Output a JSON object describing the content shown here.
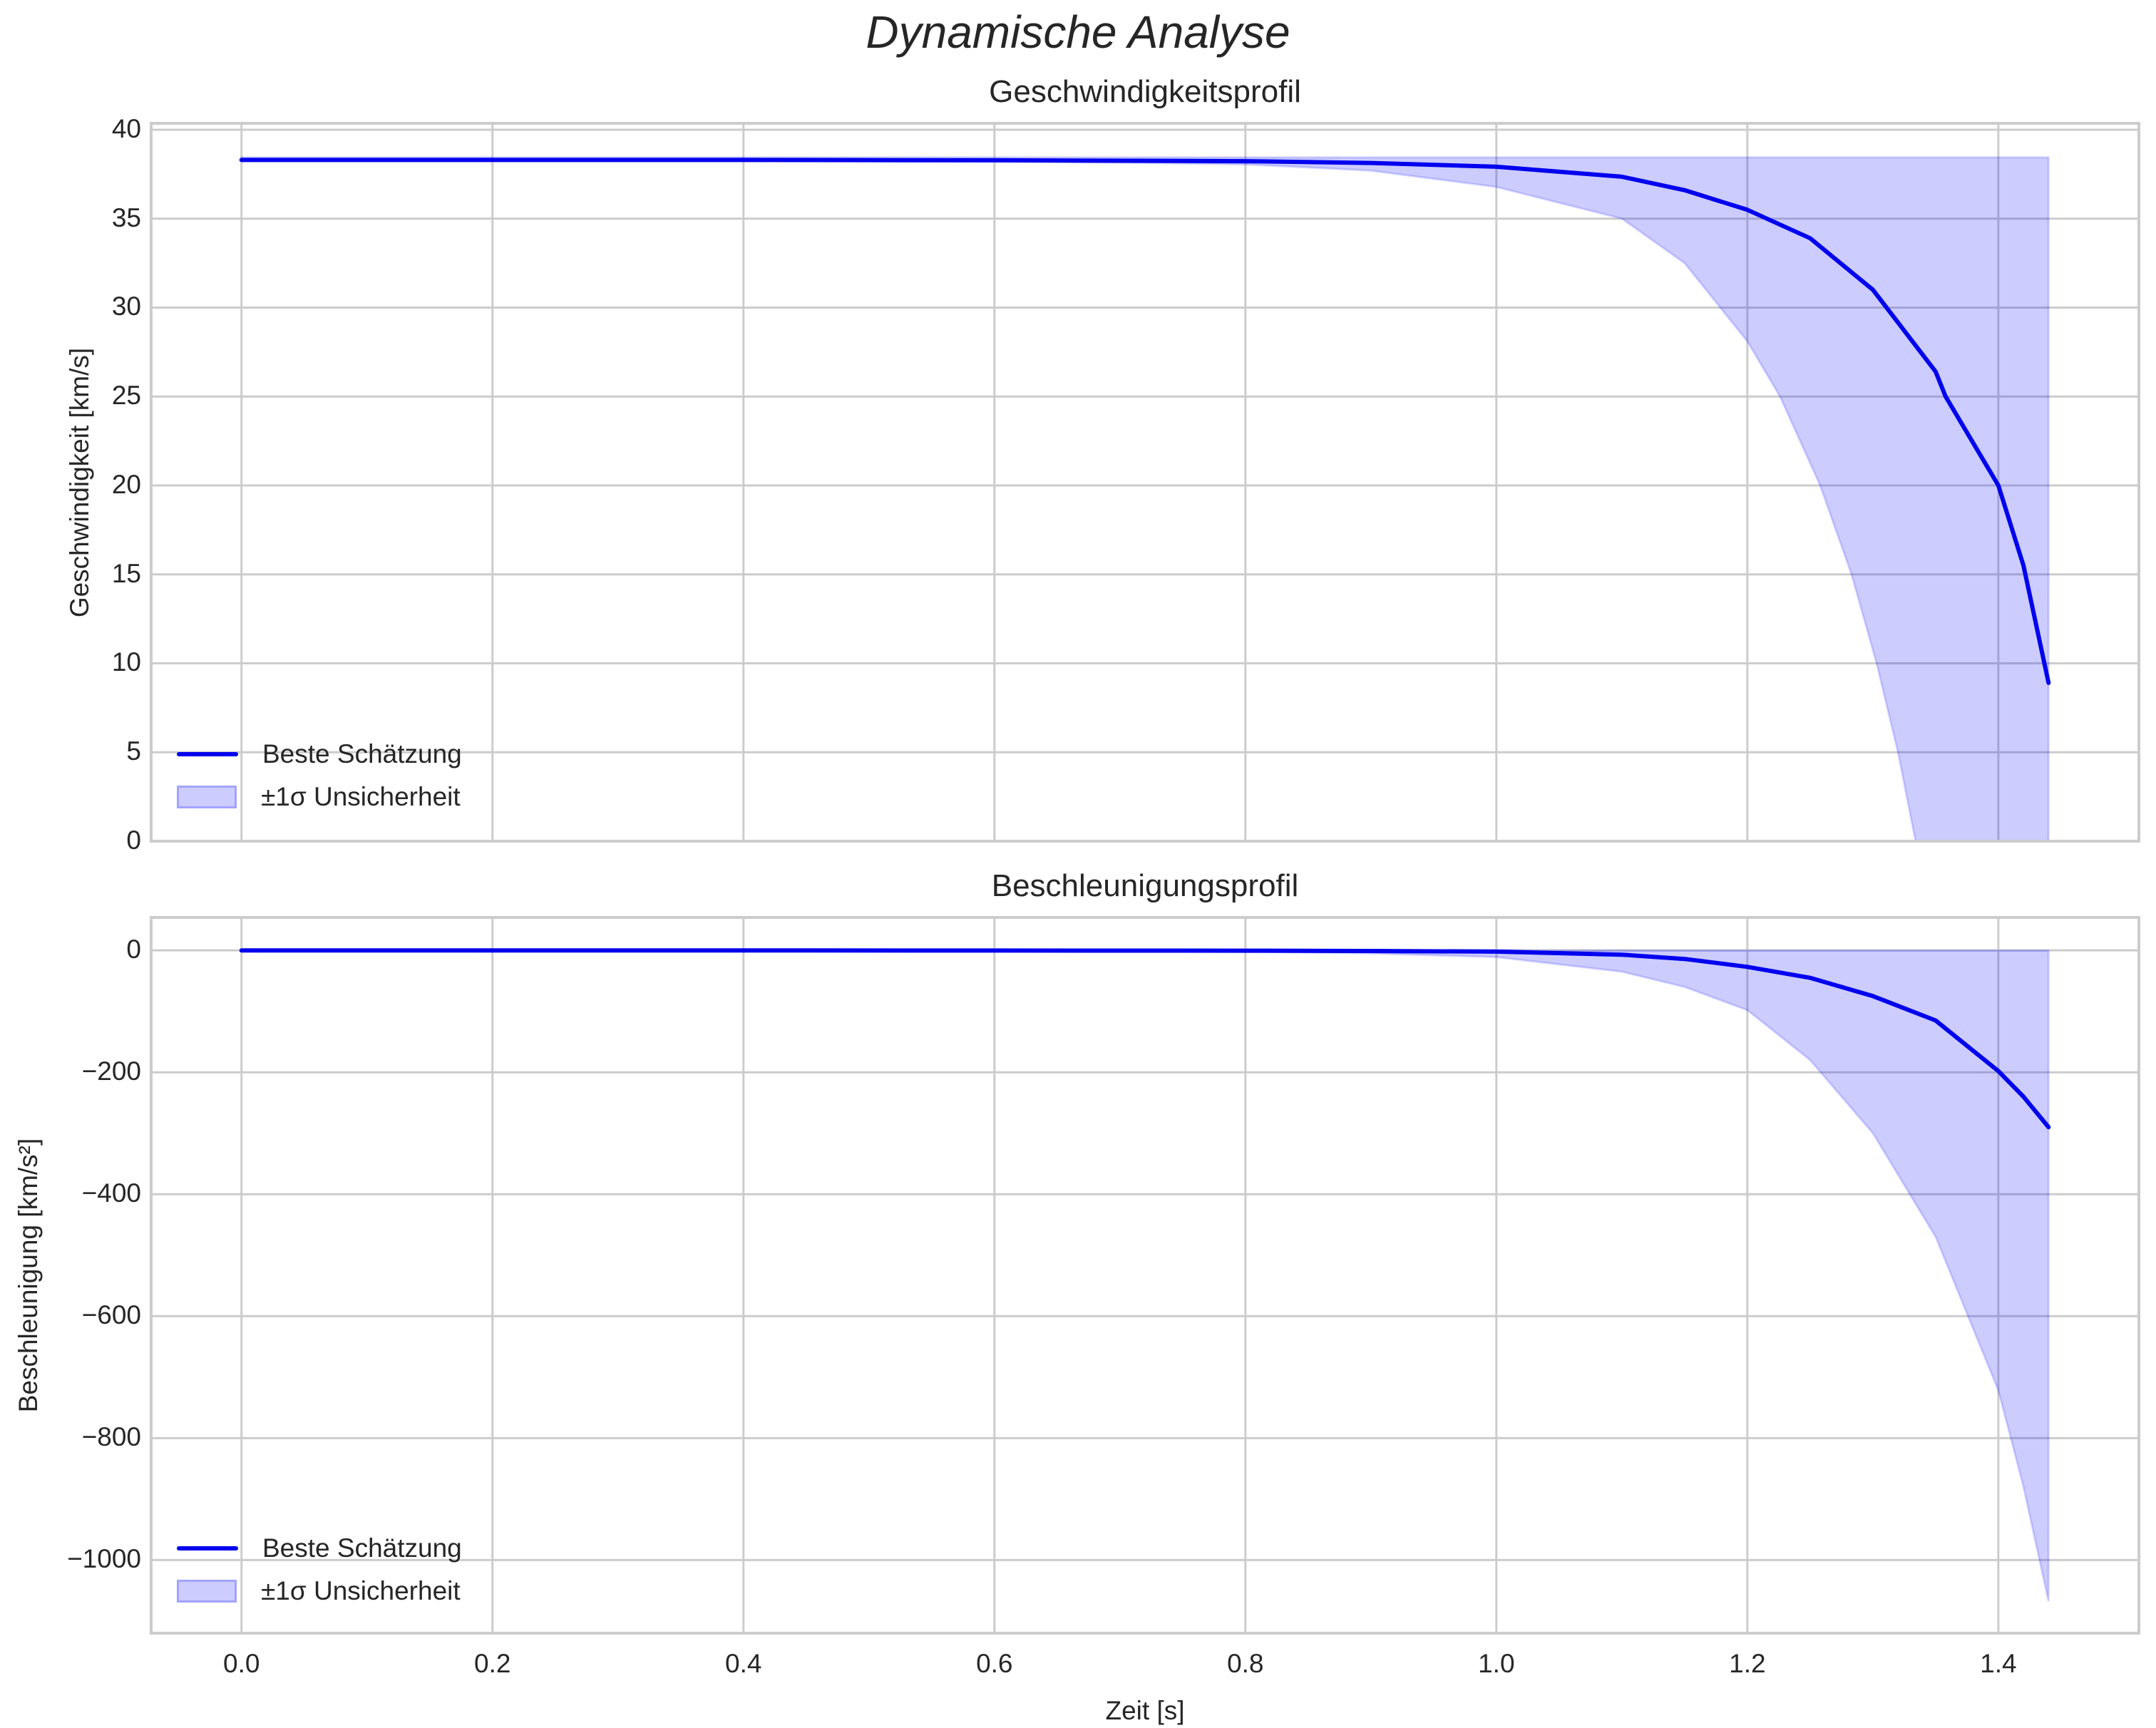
{
  "figure": {
    "title": "Dynamische Analyse",
    "xlabel": "Zeit [s]"
  },
  "axes": [
    {
      "title": "Geschwindigkeitsprofil",
      "ylabel": "Geschwindigkeit [km/s]",
      "ytick_labels": [
        "0",
        "5",
        "10",
        "15",
        "20",
        "25",
        "30",
        "35",
        "40"
      ],
      "legend": [
        "Beste Schätzung",
        "±1σ Unsicherheit"
      ]
    },
    {
      "title": "Beschleunigungsprofil",
      "ylabel": "Beschleunigung [km/s²]",
      "ytick_labels": [
        "−1000",
        "−800",
        "−600",
        "−400",
        "−200",
        "0"
      ],
      "legend": [
        "Beste Schätzung",
        "±1σ Unsicherheit"
      ]
    }
  ],
  "xtick_labels": [
    "0.0",
    "0.2",
    "0.4",
    "0.6",
    "0.8",
    "1.0",
    "1.2",
    "1.4"
  ],
  "colors": {
    "line": "#0000ee",
    "band_fill": "rgba(0,0,255,0.2)",
    "band_edge": "rgba(0,0,255,0.15)",
    "grid": "#cccccc",
    "spine": "#cccccc",
    "text": "#262626"
  },
  "chart_data": [
    {
      "type": "line",
      "title": "Geschwindigkeitsprofil",
      "xlabel": "Zeit [s]",
      "ylabel": "Geschwindigkeit [km/s]",
      "xlim": [
        -0.072,
        1.512
      ],
      "ylim": [
        0,
        40.36
      ],
      "xticks": [
        0.0,
        0.2,
        0.4,
        0.6,
        0.8,
        1.0,
        1.2,
        1.4
      ],
      "yticks": [
        0,
        5,
        10,
        15,
        20,
        25,
        30,
        35,
        40
      ],
      "grid": true,
      "legend_position": "lower left",
      "series": [
        {
          "name": "Beste Schätzung",
          "kind": "line",
          "x": [
            0.0,
            0.2,
            0.4,
            0.6,
            0.8,
            0.9,
            1.0,
            1.1,
            1.15,
            1.2,
            1.25,
            1.3,
            1.35,
            1.358,
            1.4,
            1.42,
            1.44
          ],
          "y": [
            38.3,
            38.3,
            38.3,
            38.28,
            38.23,
            38.13,
            37.92,
            37.36,
            36.6,
            35.5,
            33.9,
            31.0,
            26.4,
            25.0,
            20.0,
            15.5,
            8.9
          ]
        },
        {
          "name": "±1σ Unsicherheit",
          "kind": "band",
          "x": [
            0.0,
            0.2,
            0.4,
            0.6,
            0.8,
            0.9,
            1.0,
            1.1,
            1.15,
            1.2,
            1.226,
            1.258,
            1.283,
            1.303,
            1.32,
            1.334,
            1.39,
            1.44
          ],
          "lower": [
            38.3,
            38.3,
            38.29,
            38.25,
            38.05,
            37.7,
            36.78,
            35.0,
            32.5,
            28.1,
            25.0,
            20.0,
            15.0,
            10.0,
            5.0,
            0.0,
            -20.0,
            -40.0
          ],
          "upper": [
            38.45,
            38.45,
            38.45,
            38.45,
            38.45,
            38.45,
            38.45,
            38.45,
            38.45,
            38.45,
            38.45,
            38.45,
            38.45,
            38.45,
            38.45,
            38.45,
            38.45,
            38.45
          ]
        }
      ]
    },
    {
      "type": "line",
      "title": "Beschleunigungsprofil",
      "xlabel": "Zeit [s]",
      "ylabel": "Beschleunigung [km/s²]",
      "xlim": [
        -0.072,
        1.512
      ],
      "ylim": [
        -1120,
        54
      ],
      "xticks": [
        0.0,
        0.2,
        0.4,
        0.6,
        0.8,
        1.0,
        1.2,
        1.4
      ],
      "yticks": [
        -1000,
        -800,
        -600,
        -400,
        -200,
        0
      ],
      "grid": true,
      "legend_position": "lower left",
      "series": [
        {
          "name": "Beste Schätzung",
          "kind": "line",
          "x": [
            0.0,
            0.2,
            0.4,
            0.6,
            0.8,
            0.9,
            1.0,
            1.1,
            1.15,
            1.2,
            1.25,
            1.3,
            1.35,
            1.4,
            1.42,
            1.44
          ],
          "y": [
            0,
            0,
            -0.05,
            -0.2,
            -0.5,
            -1.0,
            -2.0,
            -7.0,
            -14.0,
            -27.0,
            -45.0,
            -75.0,
            -115.0,
            -198.0,
            -240.0,
            -290.0
          ]
        },
        {
          "name": "±1σ Unsicherheit",
          "kind": "band",
          "x": [
            0.0,
            0.2,
            0.4,
            0.6,
            0.8,
            0.9,
            1.0,
            1.1,
            1.15,
            1.2,
            1.25,
            1.3,
            1.35,
            1.4,
            1.42,
            1.44
          ],
          "lower": [
            0,
            0,
            -0.1,
            -0.5,
            -2.0,
            -5.0,
            -11.0,
            -35.0,
            -60.0,
            -98.0,
            -180.0,
            -300.0,
            -470.0,
            -722.0,
            -880.0,
            -1068.0
          ],
          "upper": [
            0,
            0,
            0,
            0,
            0,
            0,
            0,
            0,
            0,
            0,
            0,
            0,
            0,
            0,
            0,
            0
          ]
        }
      ]
    }
  ]
}
